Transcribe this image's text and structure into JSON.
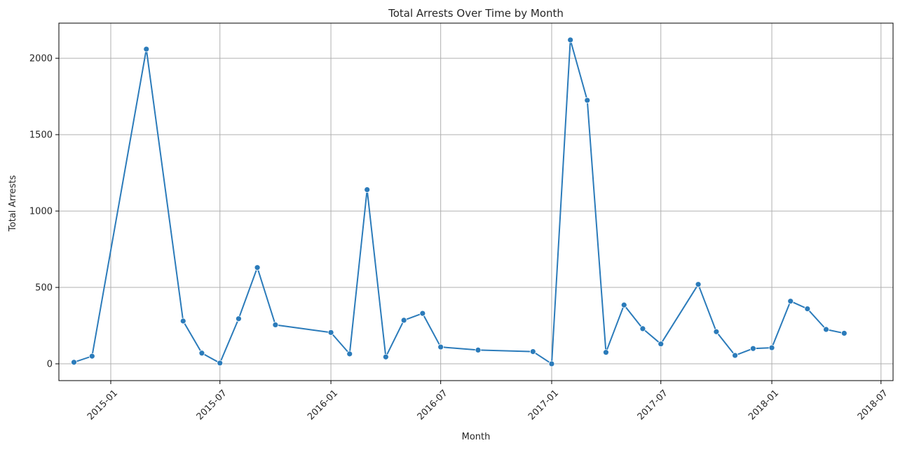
{
  "chart_data": {
    "type": "line",
    "title": "Total Arrests Over Time by Month",
    "xlabel": "Month",
    "ylabel": "Total Arrests",
    "x_ticks": [
      "2015-01",
      "2015-07",
      "2016-01",
      "2016-07",
      "2017-01",
      "2017-07",
      "2018-01",
      "2018-07"
    ],
    "y_ticks": [
      0,
      500,
      1000,
      1500,
      2000
    ],
    "xlim": [
      "2014-10-07",
      "2018-07-21"
    ],
    "ylim": [
      -110,
      2230
    ],
    "grid": true,
    "marker": "circle",
    "colors": {
      "line": "#2b7bba",
      "grid": "#b0b0b0",
      "axis": "#000000"
    },
    "series": [
      {
        "x": [
          "2014-11-01",
          "2014-12-01",
          "2015-03-01",
          "2015-05-01",
          "2015-06-01",
          "2015-07-01",
          "2015-08-01",
          "2015-09-01",
          "2015-10-01",
          "2016-01-01",
          "2016-02-01",
          "2016-03-01",
          "2016-04-01",
          "2016-05-01",
          "2016-06-01",
          "2016-07-01",
          "2016-09-01",
          "2016-12-01",
          "2017-01-01",
          "2017-02-01",
          "2017-03-01",
          "2017-04-01",
          "2017-05-01",
          "2017-06-01",
          "2017-07-01",
          "2017-09-01",
          "2017-10-01",
          "2017-11-01",
          "2017-12-01",
          "2018-01-01",
          "2018-02-01",
          "2018-03-01",
          "2018-04-01",
          "2018-05-01"
        ],
        "values": [
          10,
          50,
          2060,
          280,
          70,
          5,
          295,
          630,
          255,
          205,
          65,
          1140,
          45,
          285,
          330,
          110,
          90,
          80,
          0,
          2120,
          1725,
          75,
          385,
          230,
          130,
          520,
          210,
          55,
          100,
          105,
          410,
          360,
          225,
          200
        ]
      }
    ]
  }
}
